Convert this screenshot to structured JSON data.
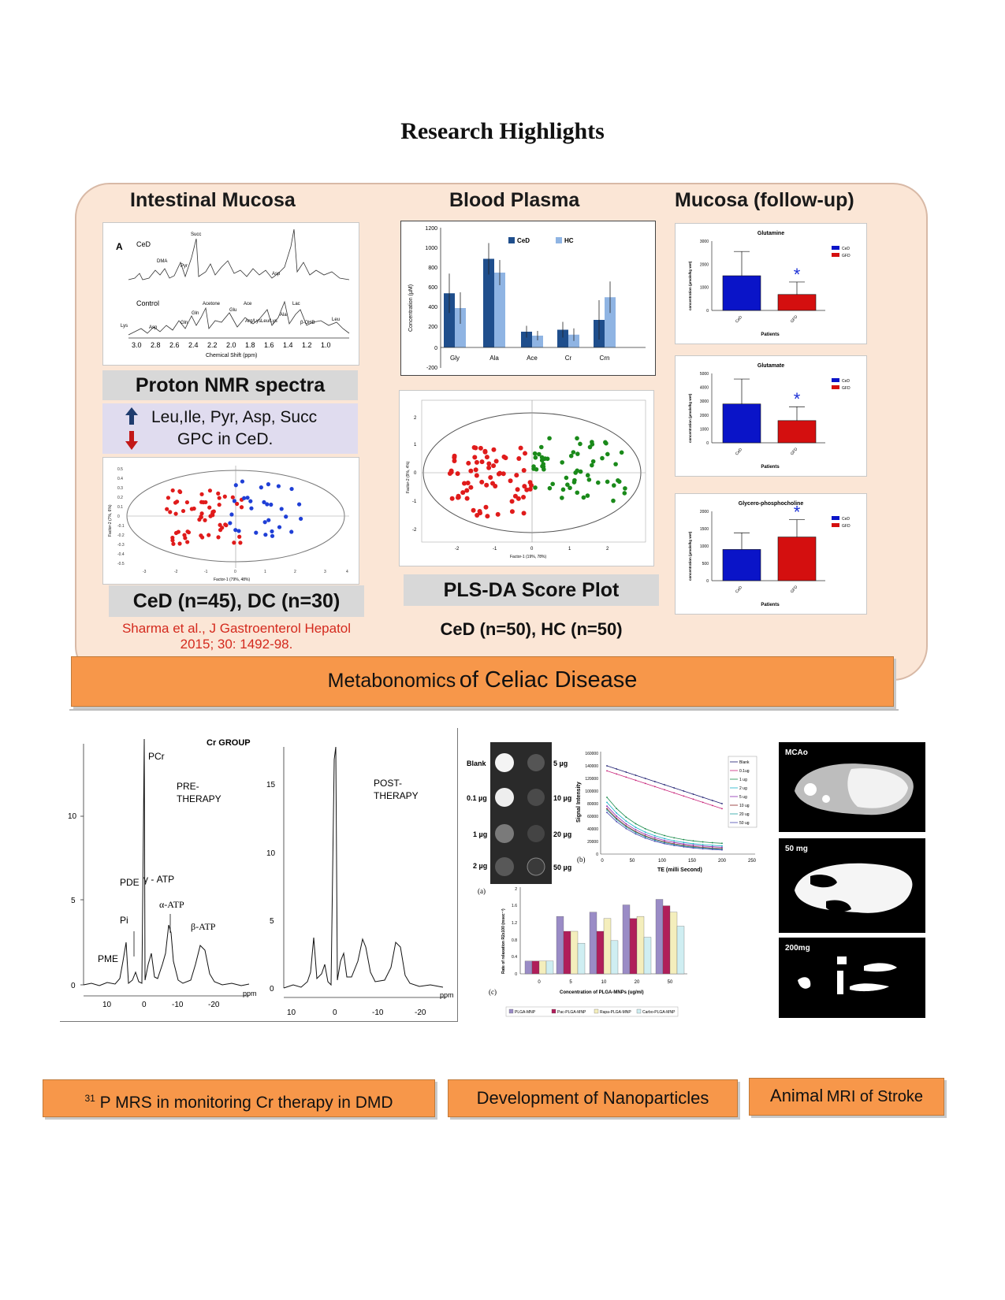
{
  "title": "Research Highlights",
  "celiac": {
    "col1_heading": "Intestinal Mucosa",
    "col2_heading": "Blood Plasma",
    "col3_heading": "Mucosa (follow-up)",
    "spectra": {
      "panel_label": "A",
      "top_label": "CeD",
      "bottom_label": "Control",
      "x_axis_label": "Chemical Shift (ppm)",
      "ticks": [
        "3.0",
        "2.8",
        "2.6",
        "2.4",
        "2.2",
        "2.0",
        "1.8",
        "1.6",
        "1.4",
        "1.2",
        "1.0"
      ],
      "peak_labels": [
        "Succ",
        "DMA",
        "Pyr",
        "Asp",
        "Acetone",
        "Gln",
        "Glu",
        "Ace",
        "Ala",
        "Lac",
        "Lys",
        "Asp",
        "Gln",
        "Arg/Lys",
        "Leu/Lys",
        "β-OHB",
        "Leu"
      ]
    },
    "proton_nmr_label": "Proton NMR spectra",
    "findings_line1": "Leu,Ile, Pyr, Asp, Succ",
    "findings_line2": "GPC in CeD.",
    "score1": {
      "xlabel": "Factor-1 (79%, 48%)",
      "ylabel": "Factor-2 (7%, 6%)",
      "xticks": [
        "-3",
        "-2",
        "-1",
        "0",
        "1",
        "2",
        "3",
        "4"
      ],
      "yticks": [
        "0.5",
        "0.4",
        "0.3",
        "0.2",
        "0.1",
        "0",
        "-0.1",
        "-0.2",
        "-0.3",
        "-0.4",
        "-0.5"
      ]
    },
    "group_label_mucosa": "CeD (n=45), DC (n=30)",
    "citation_line1": "Sharma et al., J Gastroenterol Hepatol",
    "citation_line2": "2015; 30: 1492-98.",
    "plasma_chart": {
      "legend": [
        "CeD",
        "HC"
      ],
      "ylabel": "Concentration (µM)",
      "categories": [
        "Gly",
        "Ala",
        "Ace",
        "Cr",
        "Crn"
      ],
      "yticks": [
        "1200",
        "1000",
        "800",
        "600",
        "400",
        "200",
        "0",
        "-200"
      ]
    },
    "score2": {
      "xlabel": "Factor-1 (19%, 78%)",
      "ylabel": "Factor-2 (9%, 4%)",
      "xticks": [
        "-2",
        "-1",
        "0",
        "1",
        "2"
      ],
      "yticks": [
        "2",
        "1",
        "0",
        "-1",
        "-2"
      ]
    },
    "plsda_label": "PLS-DA Score Plot",
    "group_label_plasma": "CeD (n=50), HC (n=50)",
    "followup": {
      "legend": [
        "CeD",
        "GFD"
      ],
      "ylabel": "concentration (µmole/kg wet)",
      "xlabel": "Patients",
      "star": "*",
      "charts": [
        {
          "title": "Glutamine",
          "yticks": [
            "3000",
            "2000",
            "1000",
            "0"
          ]
        },
        {
          "title": "Glutamate",
          "yticks": [
            "5000",
            "4000",
            "3000",
            "2000",
            "1000",
            "0"
          ]
        },
        {
          "title": "Glycero-phosphocholine",
          "yticks": [
            "2000",
            "1500",
            "1000",
            "500",
            "0"
          ]
        }
      ]
    }
  },
  "banner_main_a": "Metabonomics",
  "banner_main_b": "of Celiac Disease",
  "mrs": {
    "group_label": "Cr GROUP",
    "pre_label_1": "PRE-",
    "pre_label_2": "THERAPY",
    "post_label_1": "POST-",
    "post_label_2": "THERAPY",
    "peaks": [
      "PCr",
      "PDE",
      "γ - ATP",
      "α-ATP",
      "β-ATP",
      "Pi",
      "PME"
    ],
    "unit": "ppm",
    "left_yticks": [
      "10",
      "5",
      "0"
    ],
    "right_yticks": [
      "15",
      "10",
      "5",
      "0"
    ],
    "left_xticks": [
      "10",
      "0",
      "-10",
      "-20"
    ],
    "right_xticks": [
      "10",
      "0",
      "-10",
      "-20"
    ]
  },
  "nano": {
    "dose_left": [
      "Blank",
      "0.1 µg",
      "1 µg",
      "2 µg"
    ],
    "dose_right": [
      "5 µg",
      "10 µg",
      "20 µg",
      "50 µg"
    ],
    "label_a": "(a)",
    "label_b": "(b)",
    "label_c": "(c)",
    "signal_ylabel": "Signal Intensity",
    "signal_xlabel": "TE (milli Second)",
    "signal_yticks": [
      "160000",
      "140000",
      "120000",
      "100000",
      "80000",
      "60000",
      "40000",
      "20000",
      "0"
    ],
    "signal_xticks": [
      "0",
      "50",
      "100",
      "150",
      "200",
      "250"
    ],
    "signal_legend": [
      "Blank",
      "0.1ug",
      "1 ug",
      "2 ug",
      "5 ug",
      "10 ug",
      "20 ug",
      "50 ug"
    ],
    "relax_ylabel": "Rate of relaxation R2x100 (msec⁻¹)",
    "relax_xlabel": "Concentration of PLGA-MNPs (ug/ml)",
    "relax_xticks": [
      "0",
      "5",
      "10",
      "20",
      "50"
    ],
    "relax_yticks": [
      "2",
      "1.6",
      "1.2",
      "0.8",
      "0.4",
      "0"
    ],
    "relax_legend": [
      "PLGA-MNP",
      "Pac-PLGA-MNP",
      "Rapa-PLGA-MNP",
      "Carbo-PLGA-MNP"
    ]
  },
  "mri": {
    "labels": [
      "MCAo",
      "50 mg",
      "200mg"
    ]
  },
  "banner_mrs_sup": "31",
  "banner_mrs": "P MRS in monitoring Cr therapy in DMD",
  "banner_nano": "Development of Nanoparticles",
  "banner_mri_a": "Animal",
  "banner_mri_b": "MRI of Stroke",
  "colors": {
    "panel_bg": "#fbe6d6",
    "banner": "#f7974a",
    "ced_red": "#e01b1b",
    "control_blue": "#1f3fd6",
    "hc_green": "#1a8a1a",
    "plasma_dark": "#1f4e8c",
    "plasma_light": "#8fb4e3"
  }
}
